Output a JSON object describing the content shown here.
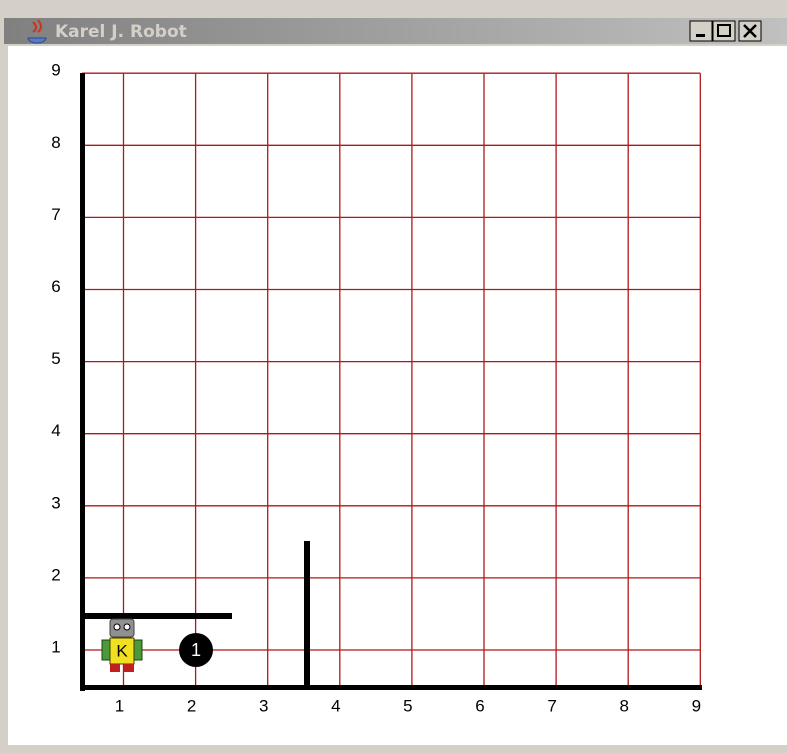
{
  "window": {
    "title": "Karel J. Robot"
  },
  "world": {
    "street_labels": [
      "1",
      "2",
      "3",
      "4",
      "5",
      "6",
      "7",
      "8",
      "9"
    ],
    "avenue_labels": [
      "1",
      "2",
      "3",
      "4",
      "5",
      "6",
      "7",
      "8",
      "9"
    ],
    "robot": {
      "label": "K"
    },
    "beepers": [
      {
        "label": "1"
      }
    ]
  }
}
